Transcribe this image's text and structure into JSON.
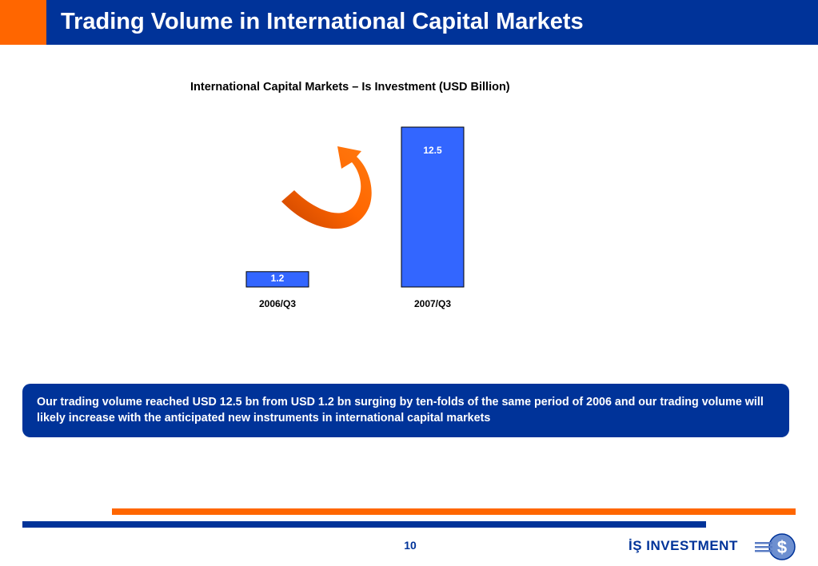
{
  "header": {
    "title": "Trading Volume in International Capital Markets",
    "accent_color": "#ff6600",
    "background_color": "#003399"
  },
  "chart_data": {
    "type": "bar",
    "title": "International Capital Markets – Is Investment (USD Billion)",
    "categories": [
      "2006/Q3",
      "2007/Q3"
    ],
    "values": [
      1.2,
      12.5
    ],
    "data_labels": [
      "1.2",
      "12.5"
    ],
    "xlabel": "",
    "ylabel": "",
    "ylim": [
      0,
      12.5
    ],
    "grid": false,
    "bar_color": "#3366ff",
    "annotation": "orange-curved-growth-arrow"
  },
  "note": {
    "text": "Our trading volume reached USD 12.5 bn from USD 1.2 bn surging by ten-folds of the same period of 2006 and our trading volume will likely increase with the anticipated new instruments in international capital markets"
  },
  "footer": {
    "page_number": "10",
    "logo_text": "İŞ INVESTMENT",
    "logo_icon": "dollar-globe-icon"
  }
}
